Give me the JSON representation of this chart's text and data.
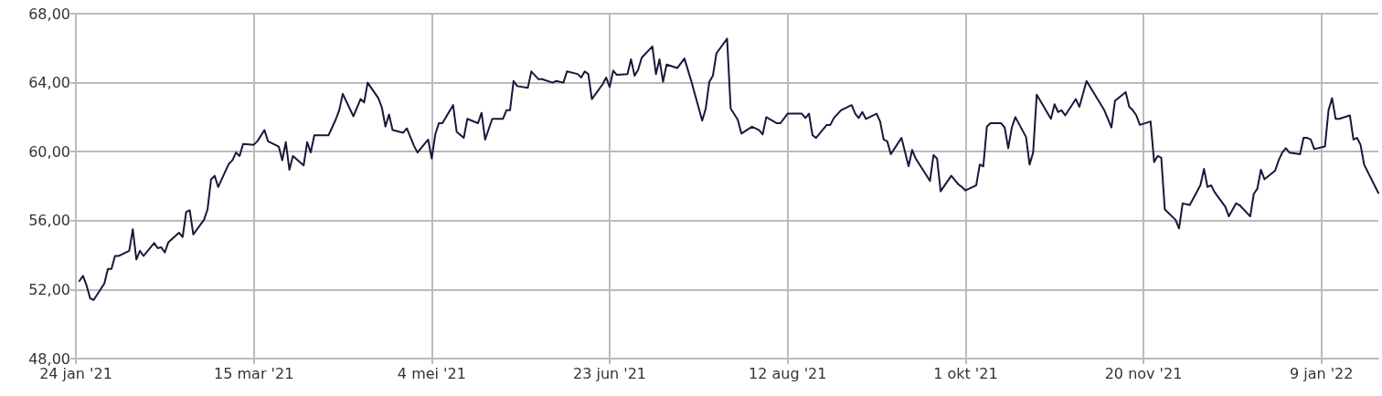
{
  "chart_data": {
    "type": "line",
    "x": [
      "2021-01-25",
      "2021-01-26",
      "2021-01-27",
      "2021-01-28",
      "2021-01-29",
      "2021-02-01",
      "2021-02-02",
      "2021-02-03",
      "2021-02-04",
      "2021-02-05",
      "2021-02-08",
      "2021-02-09",
      "2021-02-10",
      "2021-02-11",
      "2021-02-12",
      "2021-02-15",
      "2021-02-16",
      "2021-02-17",
      "2021-02-18",
      "2021-02-19",
      "2021-02-22",
      "2021-02-23",
      "2021-02-24",
      "2021-02-25",
      "2021-02-26",
      "2021-03-01",
      "2021-03-02",
      "2021-03-03",
      "2021-03-04",
      "2021-03-05",
      "2021-03-08",
      "2021-03-09",
      "2021-03-10",
      "2021-03-11",
      "2021-03-12",
      "2021-03-15",
      "2021-03-16",
      "2021-03-18",
      "2021-03-19",
      "2021-03-22",
      "2021-03-23",
      "2021-03-24",
      "2021-03-25",
      "2021-03-26",
      "2021-03-29",
      "2021-03-30",
      "2021-03-31",
      "2021-04-01",
      "2021-04-05",
      "2021-04-07",
      "2021-04-08",
      "2021-04-09",
      "2021-04-12",
      "2021-04-14",
      "2021-04-15",
      "2021-04-16",
      "2021-04-19",
      "2021-04-20",
      "2021-04-21",
      "2021-04-22",
      "2021-04-23",
      "2021-04-26",
      "2021-04-27",
      "2021-04-29",
      "2021-04-30",
      "2021-05-03",
      "2021-05-04",
      "2021-05-05",
      "2021-05-06",
      "2021-05-07",
      "2021-05-10",
      "2021-05-11",
      "2021-05-13",
      "2021-05-14",
      "2021-05-17",
      "2021-05-18",
      "2021-05-19",
      "2021-05-21",
      "2021-05-24",
      "2021-05-25",
      "2021-05-26",
      "2021-05-27",
      "2021-05-28",
      "2021-05-31",
      "2021-06-01",
      "2021-06-03",
      "2021-06-04",
      "2021-06-07",
      "2021-06-08",
      "2021-06-10",
      "2021-06-11",
      "2021-06-14",
      "2021-06-15",
      "2021-06-16",
      "2021-06-17",
      "2021-06-18",
      "2021-06-21",
      "2021-06-22",
      "2021-06-23",
      "2021-06-24",
      "2021-06-25",
      "2021-06-28",
      "2021-06-29",
      "2021-06-30",
      "2021-07-01",
      "2021-07-02",
      "2021-07-05",
      "2021-07-06",
      "2021-07-07",
      "2021-07-08",
      "2021-07-09",
      "2021-07-12",
      "2021-07-14",
      "2021-07-16",
      "2021-07-19",
      "2021-07-20",
      "2021-07-21",
      "2021-07-22",
      "2021-07-23",
      "2021-07-26",
      "2021-07-27",
      "2021-07-29",
      "2021-07-30",
      "2021-08-02",
      "2021-08-04",
      "2021-08-05",
      "2021-08-06",
      "2021-08-09",
      "2021-08-10",
      "2021-08-12",
      "2021-08-16",
      "2021-08-17",
      "2021-08-18",
      "2021-08-19",
      "2021-08-20",
      "2021-08-23",
      "2021-08-24",
      "2021-08-25",
      "2021-08-27",
      "2021-08-30",
      "2021-08-31",
      "2021-09-01",
      "2021-09-02",
      "2021-09-03",
      "2021-09-06",
      "2021-09-07",
      "2021-09-08",
      "2021-09-09",
      "2021-09-10",
      "2021-09-13",
      "2021-09-15",
      "2021-09-16",
      "2021-09-17",
      "2021-09-21",
      "2021-09-22",
      "2021-09-23",
      "2021-09-24",
      "2021-09-27",
      "2021-09-29",
      "2021-09-30",
      "2021-10-01",
      "2021-10-04",
      "2021-10-05",
      "2021-10-06",
      "2021-10-07",
      "2021-10-08",
      "2021-10-11",
      "2021-10-12",
      "2021-10-13",
      "2021-10-14",
      "2021-10-15",
      "2021-10-18",
      "2021-10-19",
      "2021-10-20",
      "2021-10-21",
      "2021-10-25",
      "2021-10-26",
      "2021-10-27",
      "2021-10-28",
      "2021-10-29",
      "2021-11-01",
      "2021-11-02",
      "2021-11-04",
      "2021-11-09",
      "2021-11-11",
      "2021-11-12",
      "2021-11-15",
      "2021-11-16",
      "2021-11-17",
      "2021-11-18",
      "2021-11-19",
      "2021-11-22",
      "2021-11-23",
      "2021-11-24",
      "2021-11-25",
      "2021-11-26",
      "2021-11-29",
      "2021-11-30",
      "2021-12-01",
      "2021-12-03",
      "2021-12-06",
      "2021-12-07",
      "2021-12-08",
      "2021-12-09",
      "2021-12-10",
      "2021-12-13",
      "2021-12-14",
      "2021-12-16",
      "2021-12-17",
      "2021-12-20",
      "2021-12-21",
      "2021-12-22",
      "2021-12-23",
      "2021-12-24",
      "2021-12-27",
      "2021-12-28",
      "2021-12-29",
      "2021-12-30",
      "2021-12-31",
      "2022-01-03",
      "2022-01-04",
      "2022-01-05",
      "2022-01-06",
      "2022-01-07",
      "2022-01-10",
      "2022-01-11",
      "2022-01-12",
      "2022-01-13",
      "2022-01-14",
      "2022-01-17",
      "2022-01-18",
      "2022-01-19",
      "2022-01-20",
      "2022-01-21",
      "2022-01-25"
    ],
    "series": [
      {
        "color": "#17183b",
        "values": [
          52.5,
          52.8,
          52.25,
          51.5,
          51.4,
          52.35,
          53.2,
          53.2,
          53.95,
          53.95,
          54.25,
          55.5,
          53.75,
          54.25,
          53.95,
          54.7,
          54.4,
          54.45,
          54.15,
          54.75,
          55.3,
          55.05,
          56.5,
          56.6,
          55.2,
          56.05,
          56.65,
          58.4,
          58.6,
          57.95,
          59.3,
          59.5,
          59.95,
          59.75,
          60.45,
          60.4,
          60.6,
          61.25,
          60.6,
          60.3,
          59.5,
          60.55,
          58.95,
          59.75,
          59.2,
          60.55,
          59.95,
          60.95,
          60.95,
          61.85,
          62.4,
          63.35,
          62.05,
          63.05,
          62.85,
          64.0,
          63.1,
          62.55,
          61.45,
          62.15,
          61.25,
          61.1,
          61.35,
          60.35,
          59.95,
          60.7,
          59.6,
          61.0,
          61.65,
          61.65,
          62.7,
          61.15,
          60.8,
          61.9,
          61.65,
          62.25,
          60.7,
          61.9,
          61.9,
          62.4,
          62.4,
          64.1,
          63.8,
          63.7,
          64.65,
          64.2,
          64.2,
          64.0,
          64.1,
          64.0,
          64.65,
          64.5,
          64.3,
          64.65,
          64.5,
          63.05,
          63.9,
          64.3,
          63.75,
          64.7,
          64.45,
          64.5,
          65.35,
          64.4,
          64.75,
          65.45,
          66.1,
          64.5,
          65.35,
          64.05,
          65.05,
          64.85,
          65.4,
          64.05,
          61.8,
          62.5,
          64.05,
          64.4,
          65.7,
          66.55,
          62.5,
          61.85,
          61.05,
          61.45,
          61.25,
          61.0,
          62.0,
          61.65,
          61.65,
          62.2,
          62.2,
          61.95,
          62.2,
          60.95,
          60.8,
          61.55,
          61.55,
          61.95,
          62.4,
          62.7,
          62.2,
          61.95,
          62.3,
          61.9,
          62.2,
          61.75,
          60.7,
          60.6,
          59.85,
          60.8,
          59.15,
          60.1,
          59.6,
          58.3,
          59.8,
          59.6,
          57.7,
          58.6,
          58.1,
          57.95,
          57.75,
          58.05,
          59.25,
          59.15,
          61.45,
          61.65,
          61.65,
          61.4,
          60.2,
          61.4,
          62.0,
          60.85,
          59.25,
          59.95,
          63.3,
          61.9,
          62.75,
          62.3,
          62.4,
          62.1,
          63.05,
          62.6,
          64.1,
          62.4,
          61.4,
          62.95,
          63.45,
          62.6,
          62.4,
          62.1,
          61.55,
          61.75,
          59.4,
          59.75,
          59.65,
          56.65,
          56.05,
          55.55,
          57.0,
          56.9,
          58.05,
          59.0,
          57.95,
          58.05,
          57.65,
          56.8,
          56.25,
          57.0,
          56.9,
          56.25,
          57.55,
          57.85,
          58.95,
          58.4,
          58.9,
          59.5,
          59.95,
          60.2,
          59.95,
          59.85,
          60.8,
          60.8,
          60.7,
          60.15,
          60.3,
          62.4,
          63.1,
          61.9,
          61.9,
          62.1,
          60.7,
          60.8,
          60.4,
          59.25,
          57.6
        ]
      }
    ],
    "xlim": [
      "2021-01-24",
      "2022-01-25"
    ],
    "xticks": [
      {
        "value": "2021-01-24",
        "label": "24 jan '21"
      },
      {
        "value": "2021-03-15",
        "label": "15 mar '21"
      },
      {
        "value": "2021-05-04",
        "label": "4 mei '21"
      },
      {
        "value": "2021-06-23",
        "label": "23 jun '21"
      },
      {
        "value": "2021-08-12",
        "label": "12 aug '21"
      },
      {
        "value": "2021-10-01",
        "label": "1 okt '21"
      },
      {
        "value": "2021-11-20",
        "label": "20 nov '21"
      },
      {
        "value": "2022-01-09",
        "label": "9 jan '22"
      }
    ],
    "ylim": [
      48,
      68
    ],
    "yticks": [
      {
        "value": 48,
        "label": "48,00"
      },
      {
        "value": 52,
        "label": "52,00"
      },
      {
        "value": 56,
        "label": "56,00"
      },
      {
        "value": 60,
        "label": "60,00"
      },
      {
        "value": 64,
        "label": "64,00"
      },
      {
        "value": 68,
        "label": "68,00"
      }
    ],
    "grid": true,
    "marker": "none",
    "line_style": "solid"
  }
}
